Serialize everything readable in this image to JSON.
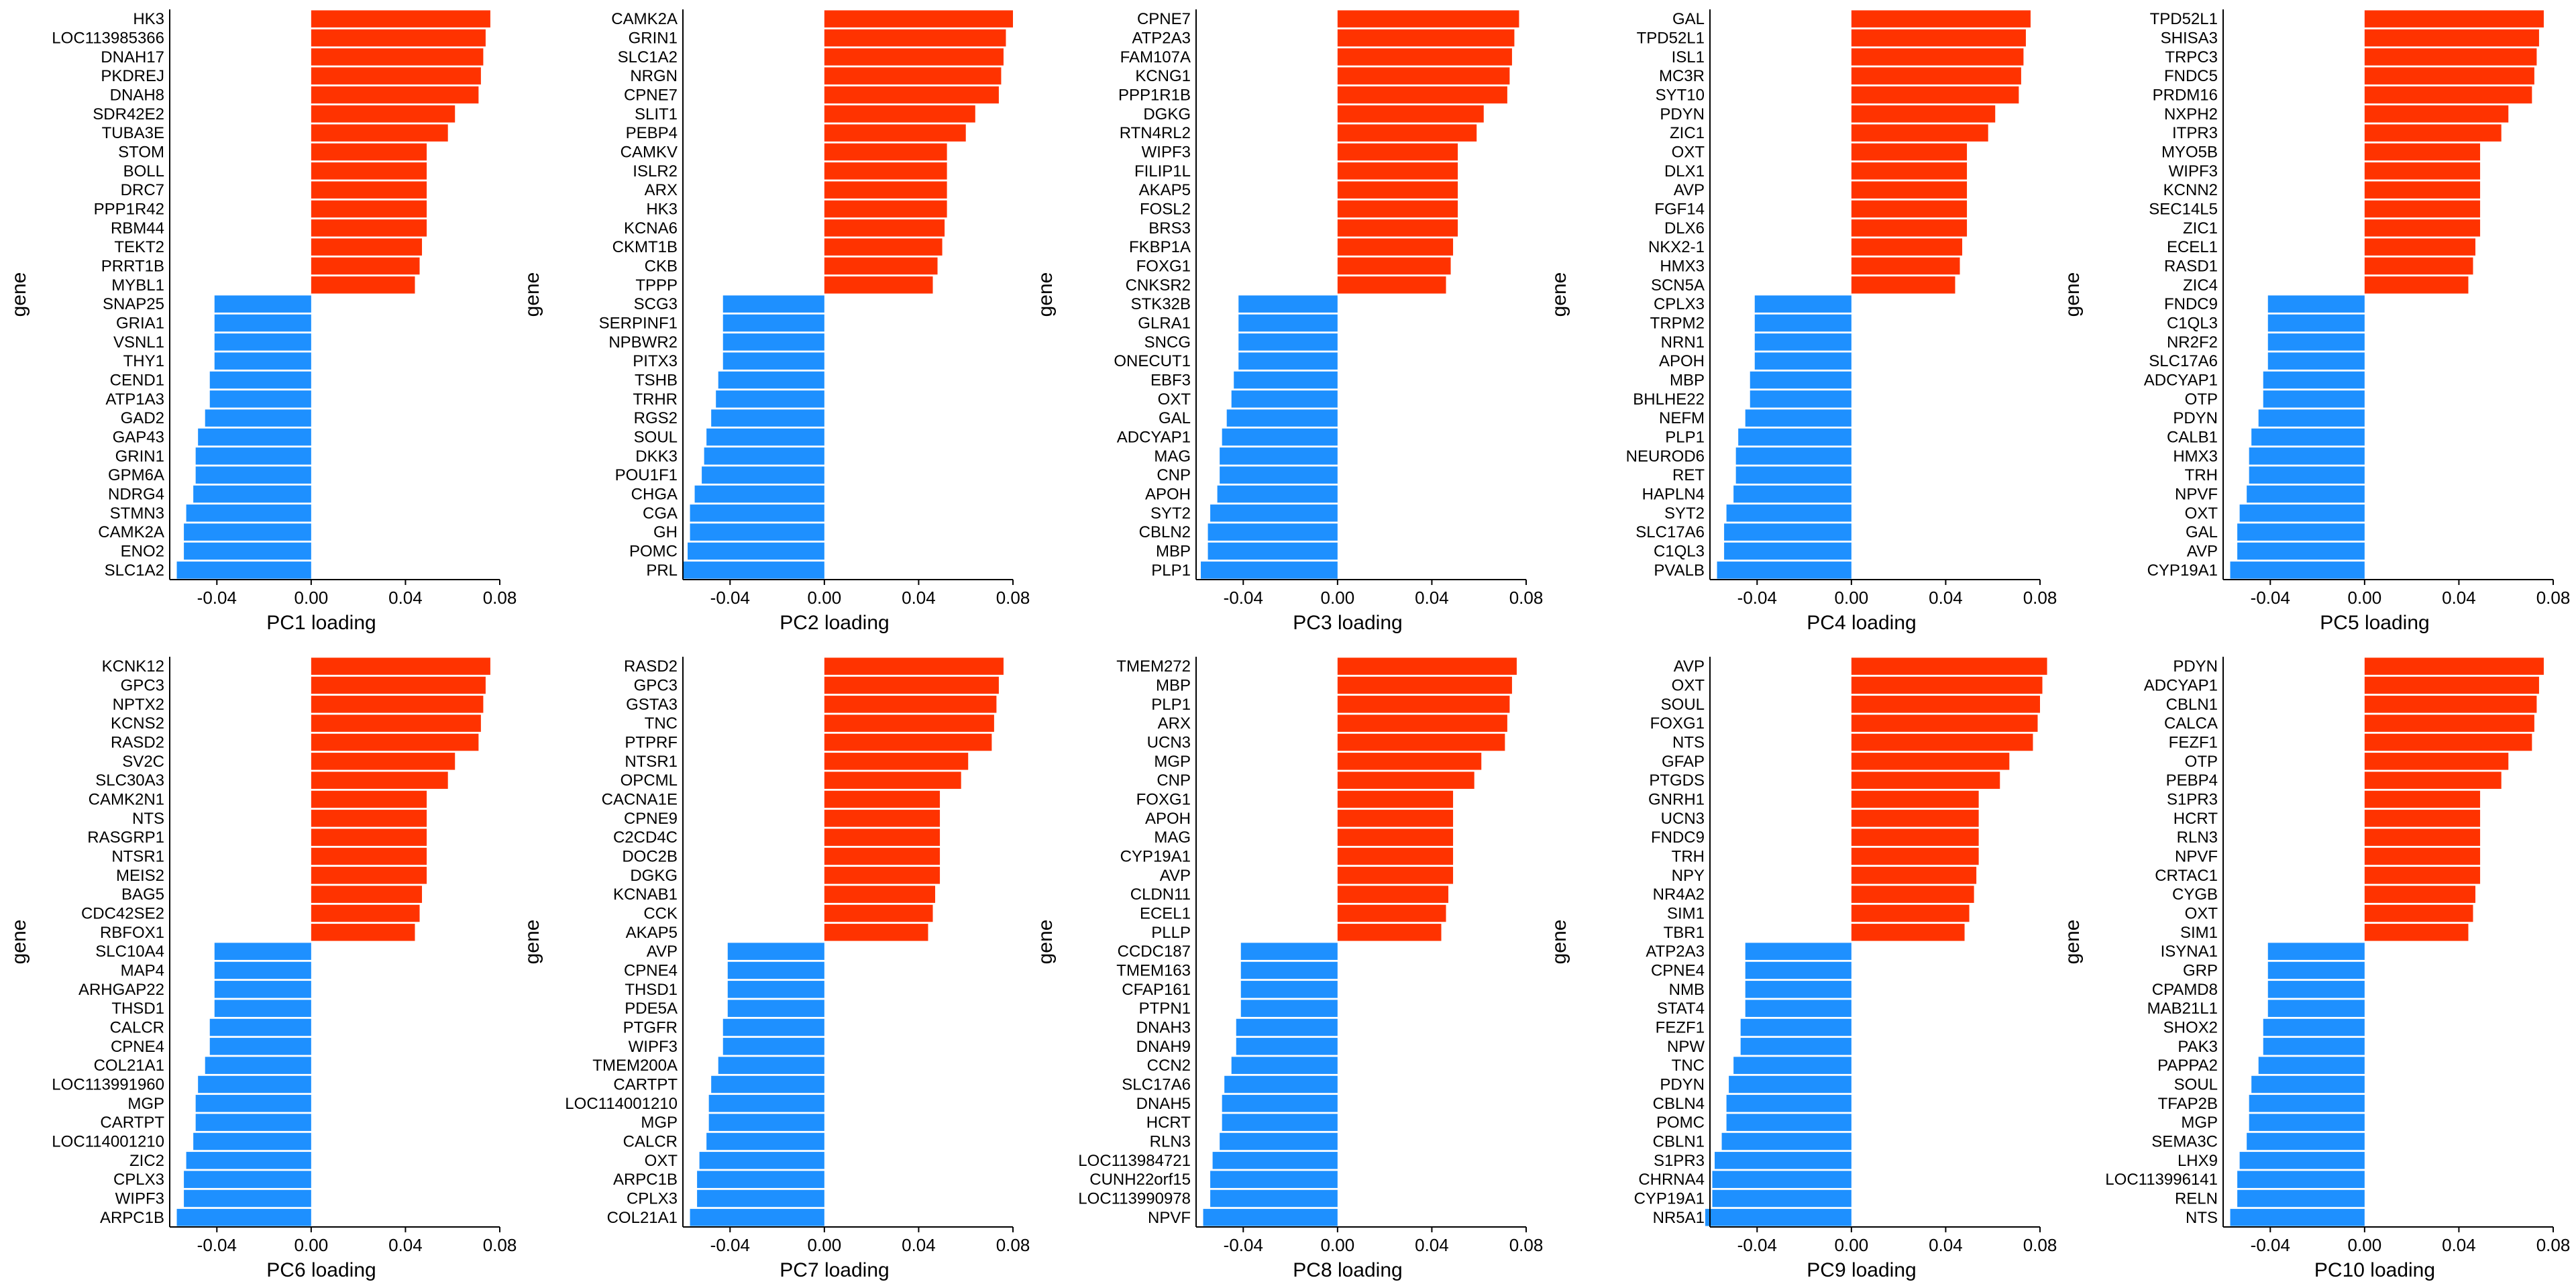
{
  "colors": {
    "positive": "#FF3300",
    "negative": "#1E90FF",
    "axis": "#000000",
    "background": "#FFFFFF"
  },
  "chart_data": [
    {
      "type": "bar",
      "orientation": "horizontal",
      "xlabel": "PC1 loading",
      "ylabel": "gene",
      "xticks": [
        "-0.04",
        "0.00",
        "0.04",
        "0.08"
      ],
      "xlim": [
        -0.06,
        0.08
      ],
      "categories": [
        "HK3",
        "LOC113985366",
        "DNAH17",
        "PKDREJ",
        "DNAH8",
        "SDR42E2",
        "TUBA3E",
        "STOM",
        "BOLL",
        "DRC7",
        "PPP1R42",
        "RBM44",
        "TEKT2",
        "PRRT1B",
        "MYBL1",
        "SNAP25",
        "GRIA1",
        "VSNL1",
        "THY1",
        "CEND1",
        "ATP1A3",
        "GAD2",
        "GAP43",
        "GRIN1",
        "GPM6A",
        "NDRG4",
        "STMN3",
        "CAMK2A",
        "ENO2",
        "SLC1A2"
      ],
      "values": [
        0.076,
        0.074,
        0.073,
        0.072,
        0.071,
        0.061,
        0.058,
        0.049,
        0.049,
        0.049,
        0.049,
        0.049,
        0.047,
        0.046,
        0.044,
        -0.041,
        -0.041,
        -0.041,
        -0.041,
        -0.043,
        -0.043,
        -0.045,
        -0.048,
        -0.049,
        -0.049,
        -0.05,
        -0.053,
        -0.054,
        -0.054,
        -0.057
      ]
    },
    {
      "type": "bar",
      "orientation": "horizontal",
      "xlabel": "PC2 loading",
      "ylabel": "gene",
      "xticks": [
        "-0.04",
        "0.00",
        "0.04",
        "0.08"
      ],
      "xlim": [
        -0.06,
        0.08
      ],
      "categories": [
        "CAMK2A",
        "GRIN1",
        "SLC1A2",
        "NRGN",
        "CPNE7",
        "SLIT1",
        "PEBP4",
        "CAMKV",
        "ISLR2",
        "ARX",
        "HK3",
        "KCNA6",
        "CKMT1B",
        "CKB",
        "TPPP",
        "SCG3",
        "SERPINF1",
        "NPBWR2",
        "PITX3",
        "TSHB",
        "TRHR",
        "RGS2",
        "SOUL",
        "DKK3",
        "POU1F1",
        "CHGA",
        "CGA",
        "GH",
        "POMC",
        "PRL"
      ],
      "values": [
        0.08,
        0.077,
        0.076,
        0.075,
        0.074,
        0.064,
        0.06,
        0.052,
        0.052,
        0.052,
        0.052,
        0.051,
        0.05,
        0.048,
        0.046,
        -0.043,
        -0.043,
        -0.043,
        -0.043,
        -0.045,
        -0.046,
        -0.048,
        -0.05,
        -0.051,
        -0.052,
        -0.055,
        -0.057,
        -0.057,
        -0.058,
        -0.06
      ]
    },
    {
      "type": "bar",
      "orientation": "horizontal",
      "xlabel": "PC3 loading",
      "ylabel": "gene",
      "xticks": [
        "-0.04",
        "0.00",
        "0.04",
        "0.08"
      ],
      "xlim": [
        -0.06,
        0.08
      ],
      "categories": [
        "CPNE7",
        "ATP2A3",
        "FAM107A",
        "KCNG1",
        "PPP1R1B",
        "DGKG",
        "RTN4RL2",
        "WIPF3",
        "FILIP1L",
        "AKAP5",
        "FOSL2",
        "BRS3",
        "FKBP1A",
        "FOXG1",
        "CNKSR2",
        "STK32B",
        "GLRA1",
        "SNCG",
        "ONECUT1",
        "EBF3",
        "OXT",
        "GAL",
        "ADCYAP1",
        "MAG",
        "CNP",
        "APOH",
        "SYT2",
        "CBLN2",
        "MBP",
        "PLP1"
      ],
      "values": [
        0.077,
        0.075,
        0.074,
        0.073,
        0.072,
        0.062,
        0.059,
        0.051,
        0.051,
        0.051,
        0.051,
        0.051,
        0.049,
        0.048,
        0.046,
        -0.042,
        -0.042,
        -0.042,
        -0.042,
        -0.044,
        -0.045,
        -0.047,
        -0.049,
        -0.05,
        -0.05,
        -0.051,
        -0.054,
        -0.055,
        -0.055,
        -0.058
      ]
    },
    {
      "type": "bar",
      "orientation": "horizontal",
      "xlabel": "PC4 loading",
      "ylabel": "gene",
      "xticks": [
        "-0.04",
        "0.00",
        "0.04",
        "0.08"
      ],
      "xlim": [
        -0.06,
        0.08
      ],
      "categories": [
        "GAL",
        "TPD52L1",
        "ISL1",
        "MC3R",
        "SYT10",
        "PDYN",
        "ZIC1",
        "OXT",
        "DLX1",
        "AVP",
        "FGF14",
        "DLX6",
        "NKX2-1",
        "HMX3",
        "SCN5A",
        "CPLX3",
        "TRPM2",
        "NRN1",
        "APOH",
        "MBP",
        "BHLHE22",
        "NEFM",
        "PLP1",
        "NEUROD6",
        "RET",
        "HAPLN4",
        "SYT2",
        "SLC17A6",
        "C1QL3",
        "PVALB"
      ],
      "values": [
        0.076,
        0.074,
        0.073,
        0.072,
        0.071,
        0.061,
        0.058,
        0.049,
        0.049,
        0.049,
        0.049,
        0.049,
        0.047,
        0.046,
        0.044,
        -0.041,
        -0.041,
        -0.041,
        -0.041,
        -0.043,
        -0.043,
        -0.045,
        -0.048,
        -0.049,
        -0.049,
        -0.05,
        -0.053,
        -0.054,
        -0.054,
        -0.057
      ]
    },
    {
      "type": "bar",
      "orientation": "horizontal",
      "xlabel": "PC5 loading",
      "ylabel": "gene",
      "xticks": [
        "-0.04",
        "0.00",
        "0.04",
        "0.08"
      ],
      "xlim": [
        -0.06,
        0.08
      ],
      "categories": [
        "TPD52L1",
        "SHISA3",
        "TRPC3",
        "FNDC5",
        "PRDM16",
        "NXPH2",
        "ITPR3",
        "MYO5B",
        "WIPF3",
        "KCNN2",
        "SEC14L5",
        "ZIC1",
        "ECEL1",
        "RASD1",
        "ZIC4",
        "FNDC9",
        "C1QL3",
        "NR2F2",
        "SLC17A6",
        "ADCYAP1",
        "OTP",
        "PDYN",
        "CALB1",
        "HMX3",
        "TRH",
        "NPVF",
        "OXT",
        "GAL",
        "AVP",
        "CYP19A1"
      ],
      "values": [
        0.076,
        0.074,
        0.073,
        0.072,
        0.071,
        0.061,
        0.058,
        0.049,
        0.049,
        0.049,
        0.049,
        0.049,
        0.047,
        0.046,
        0.044,
        -0.041,
        -0.041,
        -0.041,
        -0.041,
        -0.043,
        -0.043,
        -0.045,
        -0.048,
        -0.049,
        -0.049,
        -0.05,
        -0.053,
        -0.054,
        -0.054,
        -0.057
      ]
    },
    {
      "type": "bar",
      "orientation": "horizontal",
      "xlabel": "PC6 loading",
      "ylabel": "gene",
      "xticks": [
        "-0.04",
        "0.00",
        "0.04",
        "0.08"
      ],
      "xlim": [
        -0.06,
        0.08
      ],
      "categories": [
        "KCNK12",
        "GPC3",
        "NPTX2",
        "KCNS2",
        "RASD2",
        "SV2C",
        "SLC30A3",
        "CAMK2N1",
        "NTS",
        "RASGRP1",
        "NTSR1",
        "MEIS2",
        "BAG5",
        "CDC42SE2",
        "RBFOX1",
        "SLC10A4",
        "MAP4",
        "ARHGAP22",
        "THSD1",
        "CALCR",
        "CPNE4",
        "COL21A1",
        "LOC113991960",
        "MGP",
        "CARTPT",
        "LOC114001210",
        "ZIC2",
        "CPLX3",
        "WIPF3",
        "ARPC1B"
      ],
      "values": [
        0.076,
        0.074,
        0.073,
        0.072,
        0.071,
        0.061,
        0.058,
        0.049,
        0.049,
        0.049,
        0.049,
        0.049,
        0.047,
        0.046,
        0.044,
        -0.041,
        -0.041,
        -0.041,
        -0.041,
        -0.043,
        -0.043,
        -0.045,
        -0.048,
        -0.049,
        -0.049,
        -0.05,
        -0.053,
        -0.054,
        -0.054,
        -0.057
      ]
    },
    {
      "type": "bar",
      "orientation": "horizontal",
      "xlabel": "PC7 loading",
      "ylabel": "gene",
      "xticks": [
        "-0.04",
        "0.00",
        "0.04",
        "0.08"
      ],
      "xlim": [
        -0.06,
        0.08
      ],
      "categories": [
        "RASD2",
        "GPC3",
        "GSTA3",
        "TNC",
        "PTPRF",
        "NTSR1",
        "OPCML",
        "CACNA1E",
        "CPNE9",
        "C2CD4C",
        "DOC2B",
        "DGKG",
        "KCNAB1",
        "CCK",
        "AKAP5",
        "AVP",
        "CPNE4",
        "THSD1",
        "PDE5A",
        "PTGFR",
        "WIPF3",
        "TMEM200A",
        "CARTPT",
        "LOC114001210",
        "MGP",
        "CALCR",
        "OXT",
        "ARPC1B",
        "CPLX3",
        "COL21A1"
      ],
      "values": [
        0.076,
        0.074,
        0.073,
        0.072,
        0.071,
        0.061,
        0.058,
        0.049,
        0.049,
        0.049,
        0.049,
        0.049,
        0.047,
        0.046,
        0.044,
        -0.041,
        -0.041,
        -0.041,
        -0.041,
        -0.043,
        -0.043,
        -0.045,
        -0.048,
        -0.049,
        -0.049,
        -0.05,
        -0.053,
        -0.054,
        -0.054,
        -0.057
      ]
    },
    {
      "type": "bar",
      "orientation": "horizontal",
      "xlabel": "PC8 loading",
      "ylabel": "gene",
      "xticks": [
        "-0.04",
        "0.00",
        "0.04",
        "0.08"
      ],
      "xlim": [
        -0.06,
        0.08
      ],
      "categories": [
        "TMEM272",
        "MBP",
        "PLP1",
        "ARX",
        "UCN3",
        "MGP",
        "CNP",
        "FOXG1",
        "APOH",
        "MAG",
        "CYP19A1",
        "AVP",
        "CLDN11",
        "ECEL1",
        "PLLP",
        "CCDC187",
        "TMEM163",
        "CFAP161",
        "PTPN1",
        "DNAH3",
        "DNAH9",
        "CCN2",
        "SLC17A6",
        "DNAH5",
        "HCRT",
        "RLN3",
        "LOC113984721",
        "CUNH22orf15",
        "LOC113990978",
        "NPVF"
      ],
      "values": [
        0.076,
        0.074,
        0.073,
        0.072,
        0.071,
        0.061,
        0.058,
        0.049,
        0.049,
        0.049,
        0.049,
        0.049,
        0.047,
        0.046,
        0.044,
        -0.041,
        -0.041,
        -0.041,
        -0.041,
        -0.043,
        -0.043,
        -0.045,
        -0.048,
        -0.049,
        -0.049,
        -0.05,
        -0.053,
        -0.054,
        -0.054,
        -0.057
      ]
    },
    {
      "type": "bar",
      "orientation": "horizontal",
      "xlabel": "PC9 loading",
      "ylabel": "gene",
      "xticks": [
        "-0.04",
        "0.00",
        "0.04",
        "0.08"
      ],
      "xlim": [
        -0.06,
        0.08
      ],
      "categories": [
        "AVP",
        "OXT",
        "SOUL",
        "FOXG1",
        "NTS",
        "GFAP",
        "PTGDS",
        "GNRH1",
        "UCN3",
        "FNDC9",
        "TRH",
        "NPY",
        "NR4A2",
        "SIM1",
        "TBR1",
        "ATP2A3",
        "CPNE4",
        "NMB",
        "STAT4",
        "FEZF1",
        "NPW",
        "TNC",
        "PDYN",
        "CBLN4",
        "POMC",
        "CBLN1",
        "S1PR3",
        "CHRNA4",
        "CYP19A1",
        "NR5A1"
      ],
      "values": [
        0.083,
        0.081,
        0.08,
        0.079,
        0.077,
        0.067,
        0.063,
        0.054,
        0.054,
        0.054,
        0.054,
        0.053,
        0.052,
        0.05,
        0.048,
        -0.045,
        -0.045,
        -0.045,
        -0.045,
        -0.047,
        -0.047,
        -0.05,
        -0.052,
        -0.053,
        -0.053,
        -0.055,
        -0.058,
        -0.059,
        -0.059,
        -0.062
      ]
    },
    {
      "type": "bar",
      "orientation": "horizontal",
      "xlabel": "PC10 loading",
      "ylabel": "gene",
      "xticks": [
        "-0.04",
        "0.00",
        "0.04",
        "0.08"
      ],
      "xlim": [
        -0.06,
        0.08
      ],
      "categories": [
        "PDYN",
        "ADCYAP1",
        "CBLN1",
        "CALCA",
        "FEZF1",
        "OTP",
        "PEBP4",
        "S1PR3",
        "HCRT",
        "RLN3",
        "NPVF",
        "CRTAC1",
        "CYGB",
        "OXT",
        "SIM1",
        "ISYNA1",
        "GRP",
        "CPAMD8",
        "MAB21L1",
        "SHOX2",
        "PAK3",
        "PAPPA2",
        "SOUL",
        "TFAP2B",
        "MGP",
        "SEMA3C",
        "LHX9",
        "LOC113996141",
        "RELN",
        "NTS"
      ],
      "values": [
        0.076,
        0.074,
        0.073,
        0.072,
        0.071,
        0.061,
        0.058,
        0.049,
        0.049,
        0.049,
        0.049,
        0.049,
        0.047,
        0.046,
        0.044,
        -0.041,
        -0.041,
        -0.041,
        -0.041,
        -0.043,
        -0.043,
        -0.045,
        -0.048,
        -0.049,
        -0.049,
        -0.05,
        -0.053,
        -0.054,
        -0.054,
        -0.057
      ]
    }
  ]
}
